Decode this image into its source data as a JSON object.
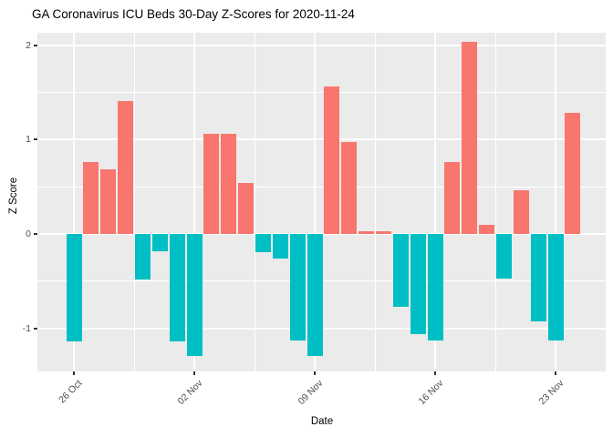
{
  "title": "GA Coronavirus ICU Beds 30-Day Z-Scores for 2020-11-24",
  "chart_data": {
    "type": "bar",
    "title": "GA Coronavirus ICU Beds 30-Day Z-Scores for 2020-11-24",
    "xlabel": "Date",
    "ylabel": "Z Score",
    "grid": true,
    "legend": "none",
    "panel_bg": "#EBEBEB",
    "plot_bg": "#FFFFFF",
    "grid_color": "#FFFFFF",
    "axis_text_color": "#4D4D4D",
    "tick_mark_color": "#333333",
    "positive_color": "#F8766D",
    "negative_color": "#00BFC4",
    "ylim": [
      -1.45,
      2.12
    ],
    "dates": [
      "2020-10-26",
      "2020-10-27",
      "2020-10-28",
      "2020-10-29",
      "2020-10-30",
      "2020-10-31",
      "2020-11-01",
      "2020-11-02",
      "2020-11-03",
      "2020-11-04",
      "2020-11-05",
      "2020-11-06",
      "2020-11-07",
      "2020-11-08",
      "2020-11-09",
      "2020-11-10",
      "2020-11-11",
      "2020-11-12",
      "2020-11-13",
      "2020-11-14",
      "2020-11-15",
      "2020-11-16",
      "2020-11-17",
      "2020-11-18",
      "2020-11-19",
      "2020-11-20",
      "2020-11-21",
      "2020-11-22",
      "2020-11-23",
      "2020-11-24"
    ],
    "values": [
      -1.14,
      0.76,
      0.68,
      1.41,
      -0.48,
      -0.18,
      -1.14,
      -1.29,
      1.06,
      1.06,
      0.54,
      -0.19,
      -0.26,
      -1.13,
      -1.29,
      1.56,
      0.97,
      0.03,
      0.03,
      -0.77,
      -1.06,
      -1.13,
      0.76,
      2.03,
      0.1,
      -0.47,
      0.46,
      -0.93,
      -1.13,
      1.28
    ],
    "x_ticks": [
      {
        "label": "26 Oct",
        "day": 0
      },
      {
        "label": "02 Nov",
        "day": 7
      },
      {
        "label": "09 Nov",
        "day": 14
      },
      {
        "label": "16 Nov",
        "day": 21
      },
      {
        "label": "23 Nov",
        "day": 28
      }
    ],
    "y_ticks": [
      {
        "label": "-1",
        "value": -1
      },
      {
        "label": "0",
        "value": 0
      },
      {
        "label": "1",
        "value": 1
      },
      {
        "label": "2",
        "value": 2
      }
    ]
  }
}
